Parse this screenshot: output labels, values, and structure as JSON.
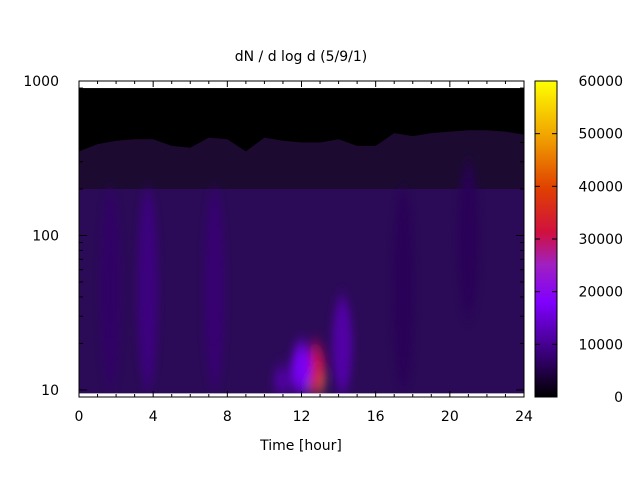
{
  "chart_data": {
    "type": "heatmap",
    "title": "dN / d log d (5/9/1)",
    "xlabel": "Time [hour]",
    "ylabel": "",
    "xlim": [
      0,
      24
    ],
    "ylim": [
      9,
      1000
    ],
    "y_scale": "log",
    "x_ticks": [
      0,
      4,
      8,
      12,
      16,
      20,
      24
    ],
    "y_ticks": [
      10,
      100,
      1000
    ],
    "data_y_range": [
      9.5,
      900
    ],
    "colorbar": {
      "range": [
        0,
        60000
      ],
      "ticks": [
        0,
        10000,
        20000,
        30000,
        40000,
        50000,
        60000
      ],
      "palette": "gnuplot (black-purple-red-orange-yellow)"
    },
    "upper_edge_of_signal": [
      {
        "x": 0.0,
        "y": 350
      },
      {
        "x": 1.0,
        "y": 390
      },
      {
        "x": 2.0,
        "y": 410
      },
      {
        "x": 3.0,
        "y": 420
      },
      {
        "x": 4.0,
        "y": 420
      },
      {
        "x": 5.0,
        "y": 380
      },
      {
        "x": 6.0,
        "y": 370
      },
      {
        "x": 7.0,
        "y": 430
      },
      {
        "x": 8.0,
        "y": 420
      },
      {
        "x": 9.0,
        "y": 350
      },
      {
        "x": 10.0,
        "y": 430
      },
      {
        "x": 11.0,
        "y": 410
      },
      {
        "x": 12.0,
        "y": 400
      },
      {
        "x": 13.0,
        "y": 400
      },
      {
        "x": 14.0,
        "y": 420
      },
      {
        "x": 15.0,
        "y": 380
      },
      {
        "x": 16.0,
        "y": 380
      },
      {
        "x": 17.0,
        "y": 460
      },
      {
        "x": 18.0,
        "y": 440
      },
      {
        "x": 19.0,
        "y": 460
      },
      {
        "x": 20.0,
        "y": 470
      },
      {
        "x": 21.0,
        "y": 480
      },
      {
        "x": 22.0,
        "y": 480
      },
      {
        "x": 23.0,
        "y": 470
      },
      {
        "x": 24.0,
        "y": 450
      }
    ],
    "features": [
      {
        "x": 12.75,
        "y_min": 9.5,
        "y_max": 14,
        "value": 52000
      },
      {
        "x": 12.75,
        "y_min": 9.5,
        "y_max": 20,
        "value": 30000
      },
      {
        "x": 12.0,
        "y_min": 9.5,
        "y_max": 20,
        "value": 18000
      },
      {
        "x": 11.0,
        "y_min": 9.5,
        "y_max": 14,
        "value": 12000
      },
      {
        "x": 14.2,
        "y_min": 9.5,
        "y_max": 40,
        "value": 12000
      },
      {
        "x": 3.7,
        "y_min": 10,
        "y_max": 200,
        "value": 9000
      },
      {
        "x": 1.7,
        "y_min": 10,
        "y_max": 200,
        "value": 7000
      },
      {
        "x": 7.3,
        "y_min": 10,
        "y_max": 200,
        "value": 8000
      },
      {
        "x": 17.5,
        "y_min": 10,
        "y_max": 200,
        "value": 6000
      },
      {
        "x": 21.0,
        "y_min": 30,
        "y_max": 300,
        "value": 6000
      }
    ]
  }
}
